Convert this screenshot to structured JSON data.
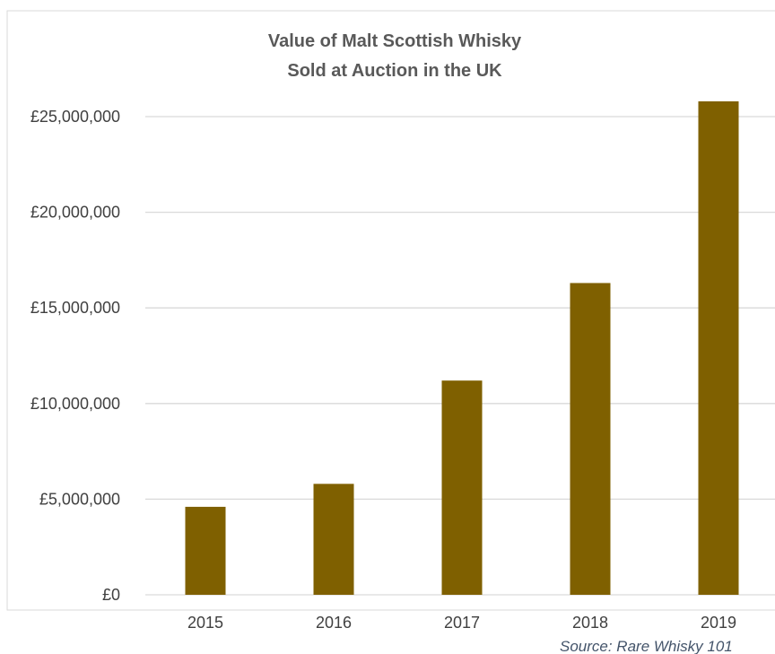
{
  "chart_data": {
    "type": "bar",
    "title": [
      "Value of Malt Scottish Whisky",
      "Sold at Auction in the UK"
    ],
    "categories": [
      "2015",
      "2016",
      "2017",
      "2018",
      "2019"
    ],
    "values": [
      4600000,
      5800000,
      11200000,
      16300000,
      25800000
    ],
    "ylim": [
      0,
      25000000
    ],
    "y_ticks": [
      0,
      5000000,
      10000000,
      15000000,
      20000000,
      25000000
    ],
    "y_tick_labels": [
      "£0",
      "£5,000,000",
      "£10,000,000",
      "£15,000,000",
      "£20,000,000",
      "£25,000,000"
    ],
    "bar_color": "#7f6000",
    "gridline_color": "#d9d9d9",
    "grid": true,
    "legend": "none",
    "source": "Source: Rare Whisky 101"
  }
}
